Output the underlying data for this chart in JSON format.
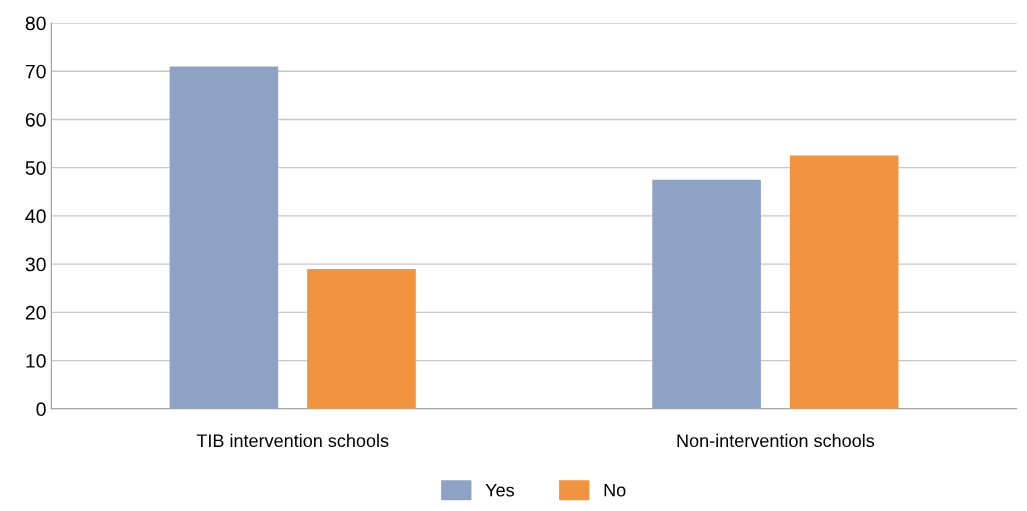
{
  "chart_data": {
    "type": "bar",
    "categories": [
      "TIB intervention schools",
      "Non-intervention schools"
    ],
    "series": [
      {
        "name": "Yes",
        "color": "#8ea2c6",
        "values": [
          71,
          47.5
        ]
      },
      {
        "name": "No",
        "color": "#f0943f",
        "values": [
          29,
          52.5
        ]
      }
    ],
    "ylim": [
      0,
      80
    ],
    "yticks": [
      0,
      10,
      20,
      30,
      40,
      50,
      60,
      70,
      80
    ],
    "grid": "y",
    "legend": "bottom"
  }
}
